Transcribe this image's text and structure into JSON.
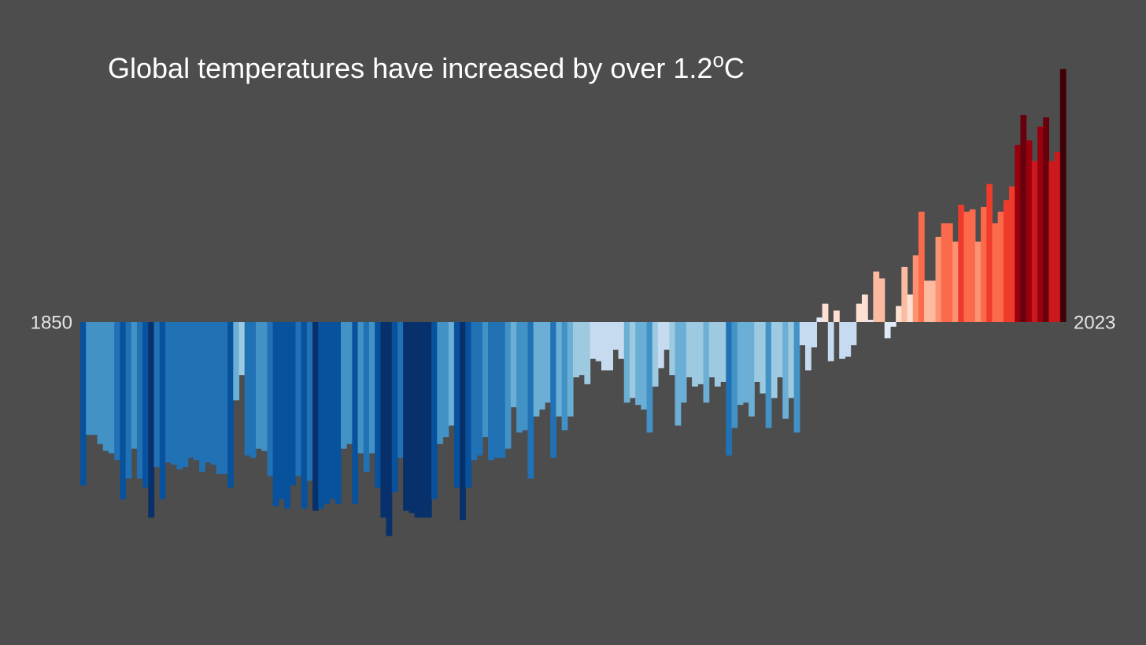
{
  "chart_data": {
    "type": "bar",
    "title": [
      "Global temperatures have increased by over 1.2",
      "o",
      "C"
    ],
    "categories": [
      "1850",
      null,
      null,
      null,
      null,
      null,
      null,
      null,
      null,
      null,
      null,
      null,
      null,
      null,
      null,
      null,
      null,
      null,
      null,
      null,
      null,
      null,
      null,
      null,
      null,
      null,
      null,
      null,
      null,
      null,
      null,
      null,
      null,
      null,
      null,
      null,
      null,
      null,
      null,
      null,
      null,
      null,
      null,
      null,
      null,
      null,
      null,
      null,
      null,
      null,
      null,
      null,
      null,
      null,
      null,
      null,
      null,
      null,
      null,
      null,
      null,
      null,
      null,
      null,
      null,
      null,
      null,
      null,
      null,
      null,
      null,
      null,
      null,
      null,
      null,
      null,
      null,
      null,
      null,
      null,
      null,
      null,
      null,
      null,
      null,
      null,
      null,
      null,
      null,
      null,
      null,
      null,
      null,
      null,
      null,
      null,
      null,
      null,
      null,
      null,
      null,
      null,
      null,
      null,
      null,
      null,
      null,
      null,
      null,
      null,
      null,
      null,
      null,
      null,
      null,
      null,
      null,
      null,
      null,
      null,
      null,
      null,
      null,
      null,
      null,
      null,
      null,
      null,
      null,
      null,
      null,
      null,
      null,
      null,
      null,
      null,
      null,
      null,
      null,
      null,
      null,
      null,
      null,
      null,
      null,
      null,
      null,
      null,
      null,
      null,
      null,
      null,
      null,
      null,
      null,
      null,
      null,
      null,
      null,
      null,
      null,
      null,
      null,
      null,
      null,
      null,
      null,
      null,
      null,
      null,
      null,
      null,
      null,
      "2023"
    ],
    "values": [
      -0.71,
      -0.49,
      -0.49,
      -0.53,
      -0.56,
      -0.57,
      -0.6,
      -0.77,
      -0.68,
      -0.55,
      -0.68,
      -0.72,
      -0.85,
      -0.63,
      -0.77,
      -0.61,
      -0.62,
      -0.64,
      -0.63,
      -0.59,
      -0.6,
      -0.65,
      -0.61,
      -0.62,
      -0.66,
      -0.66,
      -0.72,
      -0.34,
      -0.23,
      -0.58,
      -0.59,
      -0.55,
      -0.56,
      -0.67,
      -0.8,
      -0.77,
      -0.81,
      -0.71,
      -0.67,
      -0.81,
      -0.69,
      -0.82,
      -0.81,
      -0.79,
      -0.77,
      -0.79,
      -0.55,
      -0.53,
      -0.79,
      -0.57,
      -0.65,
      -0.57,
      -0.72,
      -0.85,
      -0.93,
      -0.74,
      -0.59,
      -0.82,
      -0.83,
      -0.85,
      -0.85,
      -0.85,
      -0.77,
      -0.53,
      -0.5,
      -0.45,
      -0.72,
      -0.86,
      -0.72,
      -0.6,
      -0.58,
      -0.5,
      -0.6,
      -0.59,
      -0.59,
      -0.55,
      -0.37,
      -0.48,
      -0.47,
      -0.68,
      -0.41,
      -0.38,
      -0.35,
      -0.59,
      -0.41,
      -0.47,
      -0.41,
      -0.24,
      -0.23,
      -0.27,
      -0.16,
      -0.17,
      -0.21,
      -0.21,
      -0.12,
      -0.16,
      -0.35,
      -0.33,
      -0.36,
      -0.38,
      -0.48,
      -0.28,
      -0.2,
      -0.12,
      -0.23,
      -0.45,
      -0.35,
      -0.24,
      -0.28,
      -0.27,
      -0.35,
      -0.24,
      -0.28,
      -0.26,
      -0.58,
      -0.46,
      -0.36,
      -0.35,
      -0.41,
      -0.26,
      -0.31,
      -0.46,
      -0.33,
      -0.24,
      -0.42,
      -0.33,
      -0.48,
      -0.1,
      -0.21,
      -0.11,
      0.02,
      0.08,
      -0.17,
      0.05,
      -0.16,
      -0.15,
      -0.1,
      0.08,
      0.12,
      0.01,
      0.22,
      0.19,
      -0.07,
      -0.02,
      0.07,
      0.24,
      0.12,
      0.29,
      0.48,
      0.18,
      0.18,
      0.37,
      0.43,
      0.43,
      0.35,
      0.51,
      0.48,
      0.49,
      0.35,
      0.5,
      0.6,
      0.43,
      0.48,
      0.53,
      0.59,
      0.77,
      0.9,
      0.79,
      0.7,
      0.85,
      0.89,
      0.7,
      0.74,
      1.1
    ],
    "palette": [
      "#08306b",
      "#08519c",
      "#2171b5",
      "#4292c6",
      "#6baed6",
      "#9ecae1",
      "#c6dbef",
      "#deebf7",
      "#fee0d2",
      "#fcbba1",
      "#fc9272",
      "#fb6a4a",
      "#ef3b2c",
      "#cb181d",
      "#99000d",
      "#67000d",
      "#400006"
    ],
    "ylim": [
      -1.4,
      1.4
    ]
  }
}
